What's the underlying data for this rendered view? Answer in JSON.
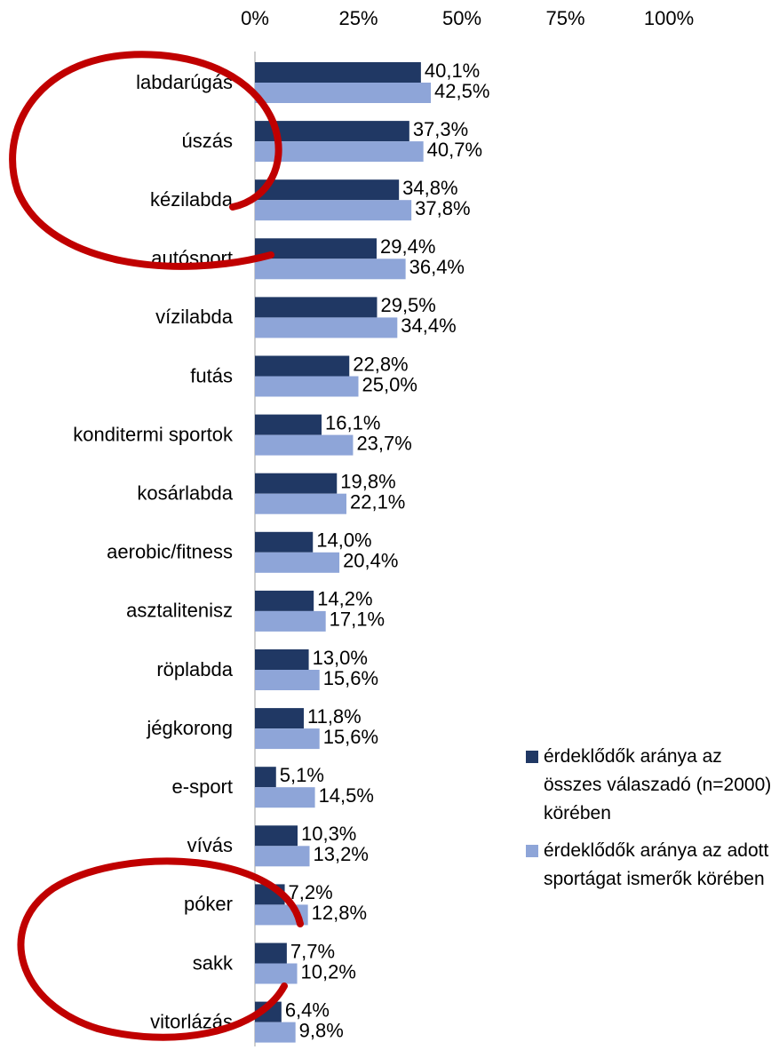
{
  "chart_data": {
    "type": "bar",
    "categories": [
      "labdarúgás",
      "úszás",
      "kézilabda",
      "autósport",
      "vízilabda",
      "futás",
      "konditermi sportok",
      "kosárlabda",
      "aerobic/fitness",
      "asztalitenisz",
      "röplabda",
      "jégkorong",
      "e-sport",
      "vívás",
      "póker",
      "sakk",
      "vitorlázás"
    ],
    "series": [
      {
        "name": "érdeklődők aránya az összes válaszadó (n=2000) körében",
        "color": "#203864",
        "values": [
          40.1,
          37.3,
          34.8,
          29.4,
          29.5,
          22.8,
          16.1,
          19.8,
          14.0,
          14.2,
          13.0,
          11.8,
          5.1,
          10.3,
          7.2,
          7.7,
          6.4
        ],
        "value_labels": [
          "40,1%",
          "37,3%",
          "34,8%",
          "29,4%",
          "29,5%",
          "22,8%",
          "16,1%",
          "19,8%",
          "14,0%",
          "14,2%",
          "13,0%",
          "11,8%",
          "5,1%",
          "10,3%",
          "7,2%",
          "7,7%",
          "6,4%"
        ]
      },
      {
        "name": "érdeklődők aránya az adott sportágat ismerők körében",
        "color": "#8ea5d8",
        "values": [
          42.5,
          40.7,
          37.8,
          36.4,
          34.4,
          25.0,
          23.7,
          22.1,
          20.4,
          17.1,
          15.6,
          15.6,
          14.5,
          13.2,
          12.8,
          10.2,
          9.8
        ],
        "value_labels": [
          "42,5%",
          "40,7%",
          "37,8%",
          "36,4%",
          "34,4%",
          "25,0%",
          "23,7%",
          "22,1%",
          "20,4%",
          "17,1%",
          "15,6%",
          "15,6%",
          "14,5%",
          "13,2%",
          "12,8%",
          "10,2%",
          "9,8%"
        ]
      }
    ],
    "xlim": [
      0,
      100
    ],
    "xticks": [
      {
        "value": 0,
        "label": "0%"
      },
      {
        "value": 25,
        "label": "25%"
      },
      {
        "value": 50,
        "label": "50%"
      },
      {
        "value": 75,
        "label": "75%"
      },
      {
        "value": 100,
        "label": "100%"
      }
    ],
    "grid": false
  }
}
